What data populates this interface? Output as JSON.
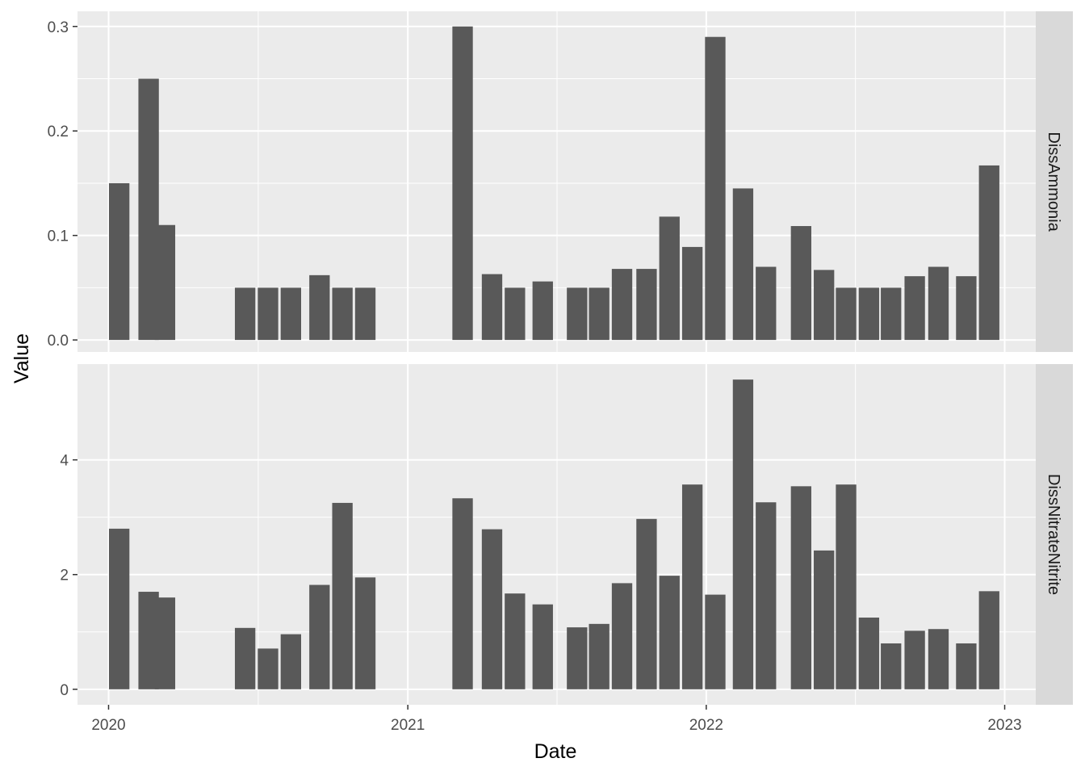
{
  "chart_data": {
    "type": "bar",
    "xlabel": "Date",
    "ylabel": "Value",
    "x_ticks": [
      "2020",
      "2021",
      "2022",
      "2023"
    ],
    "xlim": [
      "2019-11-24",
      "2023-02-08"
    ],
    "colors": {
      "bar": "#595959",
      "panel_bg": "#ebebeb",
      "strip_bg": "#d9d9d9",
      "grid": "#ffffff",
      "tick_text": "#4d4d4d"
    },
    "grid": true,
    "facets": [
      {
        "label": "DissAmmonia",
        "ylim": [
          -0.0115,
          0.3145
        ],
        "y_ticks": [
          0.0,
          0.1,
          0.2,
          0.3
        ],
        "y_tick_labels": [
          "0.0",
          "0.1",
          "0.2",
          "0.3"
        ],
        "x": [
          "2020-01-14",
          "2020-02-19",
          "2020-03-10",
          "2020-06-16",
          "2020-07-14",
          "2020-08-11",
          "2020-09-15",
          "2020-10-13",
          "2020-11-10",
          "2021-03-09",
          "2021-04-14",
          "2021-05-12",
          "2021-06-15",
          "2021-07-27",
          "2021-08-23",
          "2021-09-20",
          "2021-10-20",
          "2021-11-17",
          "2021-12-15",
          "2022-01-12",
          "2022-02-15",
          "2022-03-15",
          "2022-04-27",
          "2022-05-25",
          "2022-06-21",
          "2022-07-19",
          "2022-08-15",
          "2022-09-13",
          "2022-10-12",
          "2022-11-15",
          "2022-12-13"
        ],
        "values": [
          0.15,
          0.25,
          0.11,
          0.05,
          0.05,
          0.05,
          0.062,
          0.05,
          0.05,
          0.3,
          0.063,
          0.05,
          0.056,
          0.05,
          0.05,
          0.068,
          0.068,
          0.118,
          0.089,
          0.29,
          0.145,
          0.07,
          0.109,
          0.067,
          0.05,
          0.05,
          0.05,
          0.061,
          0.07,
          0.061,
          0.167
        ]
      },
      {
        "label": "DissNitrateNitrite",
        "ylim": [
          -0.27,
          5.67
        ],
        "y_ticks": [
          0,
          2,
          4
        ],
        "y_tick_labels": [
          "0",
          "2",
          "4"
        ],
        "x": [
          "2020-01-14",
          "2020-02-19",
          "2020-03-10",
          "2020-06-16",
          "2020-07-14",
          "2020-08-11",
          "2020-09-15",
          "2020-10-13",
          "2020-11-10",
          "2021-03-09",
          "2021-04-14",
          "2021-05-12",
          "2021-06-15",
          "2021-07-27",
          "2021-08-23",
          "2021-09-20",
          "2021-10-20",
          "2021-11-17",
          "2021-12-15",
          "2022-01-12",
          "2022-02-15",
          "2022-03-15",
          "2022-04-27",
          "2022-05-25",
          "2022-06-21",
          "2022-07-19",
          "2022-08-15",
          "2022-09-13",
          "2022-10-12",
          "2022-11-15",
          "2022-12-13"
        ],
        "values": [
          2.8,
          1.7,
          1.6,
          1.07,
          0.71,
          0.96,
          1.82,
          3.25,
          1.95,
          3.33,
          2.79,
          1.67,
          1.48,
          1.08,
          1.14,
          1.85,
          2.97,
          1.98,
          3.57,
          1.65,
          5.4,
          3.26,
          3.54,
          2.42,
          3.57,
          1.25,
          0.8,
          1.02,
          1.05,
          0.8,
          1.71
        ]
      }
    ]
  }
}
